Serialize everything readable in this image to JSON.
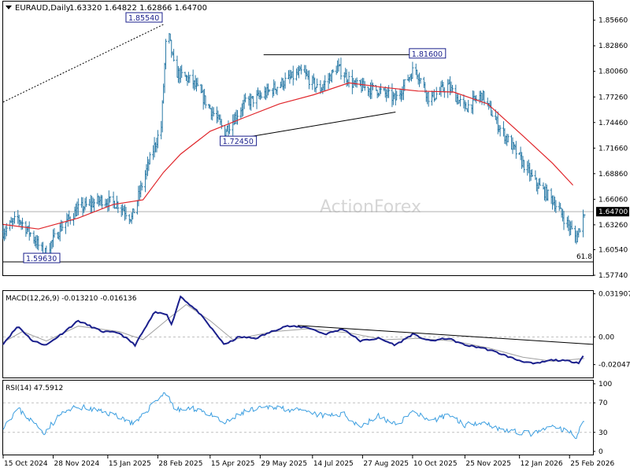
{
  "header": {
    "symbol": "EURAUD,Daily",
    "ohlc": "1.63320 1.64822 1.62866 1.64700"
  },
  "watermark": "ActionForex",
  "colors": {
    "price_bars": "#2a7aa6",
    "moving_average": "#e0262b",
    "macd_line": "#1a1f8c",
    "macd_signal": "#a0a0a0",
    "rsi_line": "#3b9ee0",
    "trend_lines": "#000000",
    "label_border": "#1a1f8c",
    "grid_dashed": "#c0c0c0",
    "watermark": "#d6d6d6"
  },
  "chart_data": [
    {
      "type": "bar",
      "pane": "price",
      "ylim": [
        1.5774,
        1.877
      ],
      "ticks": [
        1.5774,
        1.6054,
        1.6326,
        1.647,
        1.6606,
        1.6886,
        1.7166,
        1.7446,
        1.7726,
        1.8006,
        1.8286,
        1.8566
      ],
      "tick_labels": [
        "1.57740",
        "1.60540",
        "1.63260",
        "1.64700",
        "1.66060",
        "1.68860",
        "1.71660",
        "1.74460",
        "1.77260",
        "1.80060",
        "1.82860",
        "1.85660"
      ],
      "current_price": 1.647,
      "current_price_label": "1.64700",
      "fib_level": 1.592,
      "fib_label": "61.8",
      "annotations": [
        {
          "label": "1.85540",
          "value": 1.8554,
          "date": "2025-03-08"
        },
        {
          "label": "1.81600",
          "value": 1.816,
          "date": "2025-10-12"
        },
        {
          "label": "1.72450",
          "value": 1.7245,
          "date": "2025-04-28"
        },
        {
          "label": "1.59630",
          "value": 1.5963,
          "date": "2024-11-20"
        }
      ],
      "anchors_close": [
        [
          "2024-10-15",
          1.625
        ],
        [
          "2024-10-28",
          1.64
        ],
        [
          "2024-11-10",
          1.62
        ],
        [
          "2024-11-20",
          1.6
        ],
        [
          "2024-12-05",
          1.63
        ],
        [
          "2024-12-20",
          1.65
        ],
        [
          "2025-01-10",
          1.66
        ],
        [
          "2025-01-25",
          1.655
        ],
        [
          "2025-02-05",
          1.64
        ],
        [
          "2025-02-20",
          1.7
        ],
        [
          "2025-03-03",
          1.74
        ],
        [
          "2025-03-08",
          1.852
        ],
        [
          "2025-03-15",
          1.8
        ],
        [
          "2025-03-30",
          1.79
        ],
        [
          "2025-04-15",
          1.76
        ],
        [
          "2025-04-28",
          1.735
        ],
        [
          "2025-05-15",
          1.765
        ],
        [
          "2025-06-01",
          1.775
        ],
        [
          "2025-06-20",
          1.79
        ],
        [
          "2025-07-05",
          1.8
        ],
        [
          "2025-07-20",
          1.78
        ],
        [
          "2025-08-05",
          1.805
        ],
        [
          "2025-08-20",
          1.785
        ],
        [
          "2025-09-10",
          1.78
        ],
        [
          "2025-09-25",
          1.77
        ],
        [
          "2025-10-12",
          1.805
        ],
        [
          "2025-10-25",
          1.77
        ],
        [
          "2025-11-10",
          1.785
        ],
        [
          "2025-11-25",
          1.76
        ],
        [
          "2025-12-10",
          1.775
        ],
        [
          "2025-12-25",
          1.74
        ],
        [
          "2026-01-10",
          1.71
        ],
        [
          "2026-01-25",
          1.68
        ],
        [
          "2026-02-10",
          1.66
        ],
        [
          "2026-02-25",
          1.63
        ],
        [
          "2026-03-03",
          1.618
        ],
        [
          "2026-03-10",
          1.647
        ]
      ],
      "ma_anchors": [
        [
          "2024-10-15",
          1.633
        ],
        [
          "2024-11-15",
          1.628
        ],
        [
          "2024-12-20",
          1.64
        ],
        [
          "2025-01-20",
          1.655
        ],
        [
          "2025-02-15",
          1.66
        ],
        [
          "2025-03-05",
          1.69
        ],
        [
          "2025-03-20",
          1.71
        ],
        [
          "2025-04-15",
          1.735
        ],
        [
          "2025-05-15",
          1.75
        ],
        [
          "2025-06-15",
          1.765
        ],
        [
          "2025-07-15",
          1.775
        ],
        [
          "2025-08-15",
          1.788
        ],
        [
          "2025-09-15",
          1.783
        ],
        [
          "2025-10-15",
          1.779
        ],
        [
          "2025-11-15",
          1.778
        ],
        [
          "2025-12-15",
          1.765
        ],
        [
          "2026-01-15",
          1.73
        ],
        [
          "2026-02-10",
          1.7
        ],
        [
          "2026-02-28",
          1.676
        ]
      ],
      "trend_lines": [
        {
          "from": [
            "2024-10-15",
            1.767
          ],
          "to": [
            "2025-03-05",
            1.852
          ],
          "style": "dotted"
        },
        {
          "from": [
            "2025-06-01",
            1.8188
          ],
          "to": [
            "2025-11-02",
            1.8188
          ],
          "style": "solid"
        },
        {
          "from": [
            "2025-04-28",
            1.7245
          ],
          "to": [
            "2025-09-25",
            1.756
          ],
          "style": "solid"
        }
      ]
    },
    {
      "type": "line",
      "pane": "macd",
      "title": "MACD(12,26,9) -0.013210 -0.016136",
      "ylim": [
        -0.03,
        0.034
      ],
      "ticks": [
        0.031907,
        0.0,
        -0.020479
      ],
      "tick_labels": [
        "0.031907",
        "0.00",
        "-0.020479"
      ],
      "anchors": [
        [
          "2024-10-15",
          -0.005
        ],
        [
          "2024-10-28",
          0.008
        ],
        [
          "2024-11-10",
          -0.003
        ],
        [
          "2024-11-22",
          -0.006
        ],
        [
          "2024-12-05",
          0.002
        ],
        [
          "2024-12-20",
          0.012
        ],
        [
          "2025-01-10",
          0.004
        ],
        [
          "2025-01-25",
          0.003
        ],
        [
          "2025-02-08",
          -0.006
        ],
        [
          "2025-02-25",
          0.018
        ],
        [
          "2025-03-08",
          0.017
        ],
        [
          "2025-03-12",
          0.009
        ],
        [
          "2025-03-20",
          0.03
        ],
        [
          "2025-04-05",
          0.018
        ],
        [
          "2025-04-28",
          -0.006
        ],
        [
          "2025-05-10",
          0.0
        ],
        [
          "2025-05-25",
          -0.001
        ],
        [
          "2025-06-20",
          0.008
        ],
        [
          "2025-07-10",
          0.007
        ],
        [
          "2025-07-25",
          0.002
        ],
        [
          "2025-08-10",
          0.006
        ],
        [
          "2025-08-25",
          -0.003
        ],
        [
          "2025-09-10",
          -0.001
        ],
        [
          "2025-09-25",
          -0.006
        ],
        [
          "2025-10-10",
          0.002
        ],
        [
          "2025-10-25",
          -0.003
        ],
        [
          "2025-11-10",
          -0.001
        ],
        [
          "2025-11-25",
          -0.006
        ],
        [
          "2025-12-10",
          -0.008
        ],
        [
          "2025-12-25",
          -0.012
        ],
        [
          "2026-01-10",
          -0.017
        ],
        [
          "2026-01-25",
          -0.02
        ],
        [
          "2026-02-10",
          -0.017
        ],
        [
          "2026-02-25",
          -0.018
        ],
        [
          "2026-03-05",
          -0.019
        ],
        [
          "2026-03-10",
          -0.013
        ]
      ],
      "signal_anchors": [
        [
          "2024-10-15",
          -0.004
        ],
        [
          "2024-11-01",
          0.004
        ],
        [
          "2024-11-22",
          -0.003
        ],
        [
          "2024-12-20",
          0.008
        ],
        [
          "2025-01-25",
          0.004
        ],
        [
          "2025-02-15",
          -0.002
        ],
        [
          "2025-03-10",
          0.014
        ],
        [
          "2025-03-25",
          0.024
        ],
        [
          "2025-04-15",
          0.012
        ],
        [
          "2025-05-05",
          -0.002
        ],
        [
          "2025-06-10",
          0.004
        ],
        [
          "2025-07-10",
          0.006
        ],
        [
          "2025-08-15",
          0.003
        ],
        [
          "2025-09-15",
          -0.002
        ],
        [
          "2025-10-15",
          -0.001
        ],
        [
          "2025-11-15",
          -0.003
        ],
        [
          "2025-12-15",
          -0.008
        ],
        [
          "2026-01-15",
          -0.015
        ],
        [
          "2026-02-10",
          -0.018
        ],
        [
          "2026-03-10",
          -0.016
        ]
      ],
      "trend_line": {
        "from": [
          "2025-07-01",
          0.0085
        ],
        "to": [
          "2026-03-10",
          -0.002
        ]
      }
    },
    {
      "type": "line",
      "pane": "rsi",
      "title": "RSI(14) 47.5912",
      "ylim": [
        0,
        100
      ],
      "ticks": [
        100,
        70,
        30,
        0
      ],
      "tick_labels": [
        "100",
        "70",
        "30",
        "0"
      ],
      "levels": [
        70,
        30
      ],
      "anchors": [
        [
          "2024-10-15",
          38
        ],
        [
          "2024-10-28",
          62
        ],
        [
          "2024-11-10",
          44
        ],
        [
          "2024-11-20",
          30
        ],
        [
          "2024-12-05",
          55
        ],
        [
          "2024-12-20",
          65
        ],
        [
          "2025-01-10",
          58
        ],
        [
          "2025-01-25",
          52
        ],
        [
          "2025-02-08",
          40
        ],
        [
          "2025-02-25",
          72
        ],
        [
          "2025-03-08",
          85
        ],
        [
          "2025-03-15",
          60
        ],
        [
          "2025-04-05",
          62
        ],
        [
          "2025-04-28",
          42
        ],
        [
          "2025-05-15",
          58
        ],
        [
          "2025-06-10",
          65
        ],
        [
          "2025-07-05",
          58
        ],
        [
          "2025-07-25",
          52
        ],
        [
          "2025-08-10",
          55
        ],
        [
          "2025-08-25",
          38
        ],
        [
          "2025-09-10",
          52
        ],
        [
          "2025-09-25",
          40
        ],
        [
          "2025-10-12",
          60
        ],
        [
          "2025-10-25",
          42
        ],
        [
          "2025-11-10",
          55
        ],
        [
          "2025-11-25",
          40
        ],
        [
          "2025-12-10",
          45
        ],
        [
          "2025-12-25",
          35
        ],
        [
          "2026-01-10",
          30
        ],
        [
          "2026-01-25",
          28
        ],
        [
          "2026-02-10",
          38
        ],
        [
          "2026-02-25",
          30
        ],
        [
          "2026-03-03",
          25
        ],
        [
          "2026-03-10",
          47.6
        ]
      ]
    }
  ],
  "x_axis": {
    "ticks": [
      {
        "date": "2024-10-15",
        "label": "15 Oct 2024"
      },
      {
        "date": "2024-11-28",
        "label": "28 Nov 2024"
      },
      {
        "date": "2025-01-15",
        "label": "15 Jan 2025"
      },
      {
        "date": "2025-02-28",
        "label": "28 Feb 2025"
      },
      {
        "date": "2025-04-15",
        "label": "15 Apr 2025"
      },
      {
        "date": "2025-05-29",
        "label": "29 May 2025"
      },
      {
        "date": "2025-07-14",
        "label": "14 Jul 2025"
      },
      {
        "date": "2025-08-27",
        "label": "27 Aug 2025"
      },
      {
        "date": "2025-10-10",
        "label": "10 Oct 2025"
      },
      {
        "date": "2025-11-25",
        "label": "25 Nov 2025"
      },
      {
        "date": "2026-01-12",
        "label": "12 Jan 2026"
      },
      {
        "date": "2026-02-25",
        "label": "25 Feb 2026"
      }
    ]
  }
}
